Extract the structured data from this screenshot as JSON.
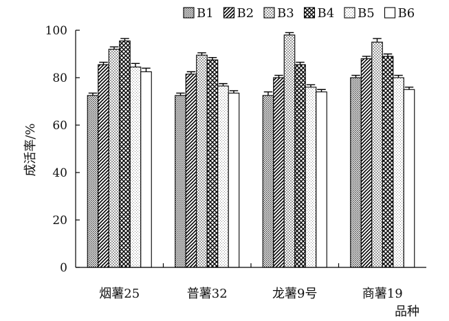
{
  "chart_data": {
    "type": "bar",
    "title": "",
    "xlabel": "品种",
    "ylabel": "成活率/%",
    "ylim": [
      0,
      100
    ],
    "yticks": [
      0,
      20,
      40,
      60,
      80,
      100
    ],
    "categories": [
      "烟薯25",
      "普薯32",
      "龙薯9号",
      "商薯19"
    ],
    "series": [
      {
        "name": "B1",
        "values": [
          72.5,
          72.5,
          72.5,
          80
        ],
        "errors": [
          1.0,
          1.0,
          1.5,
          1.0
        ],
        "pattern": "dots"
      },
      {
        "name": "B2",
        "values": [
          85.5,
          81.5,
          80,
          88
        ],
        "errors": [
          1.0,
          1.0,
          1.0,
          1.0
        ],
        "pattern": "diag"
      },
      {
        "name": "B3",
        "values": [
          92,
          89.5,
          98,
          95
        ],
        "errors": [
          1.0,
          1.0,
          1.0,
          1.5
        ],
        "pattern": "checker"
      },
      {
        "name": "B4",
        "values": [
          95.5,
          87.5,
          85.5,
          89
        ],
        "errors": [
          1.0,
          1.0,
          1.0,
          1.0
        ],
        "pattern": "cross"
      },
      {
        "name": "B5",
        "values": [
          84.5,
          76.5,
          76,
          80
        ],
        "errors": [
          1.5,
          1.0,
          1.0,
          1.0
        ],
        "pattern": "fine"
      },
      {
        "name": "B6",
        "values": [
          82.5,
          73.5,
          74,
          75
        ],
        "errors": [
          1.5,
          1.0,
          1.0,
          1.0
        ],
        "pattern": "none"
      }
    ],
    "legend_position": "top-right",
    "grid": false,
    "colors": {
      "bar_stroke": "#000000",
      "axis": "#000000",
      "background": "#ffffff"
    }
  }
}
